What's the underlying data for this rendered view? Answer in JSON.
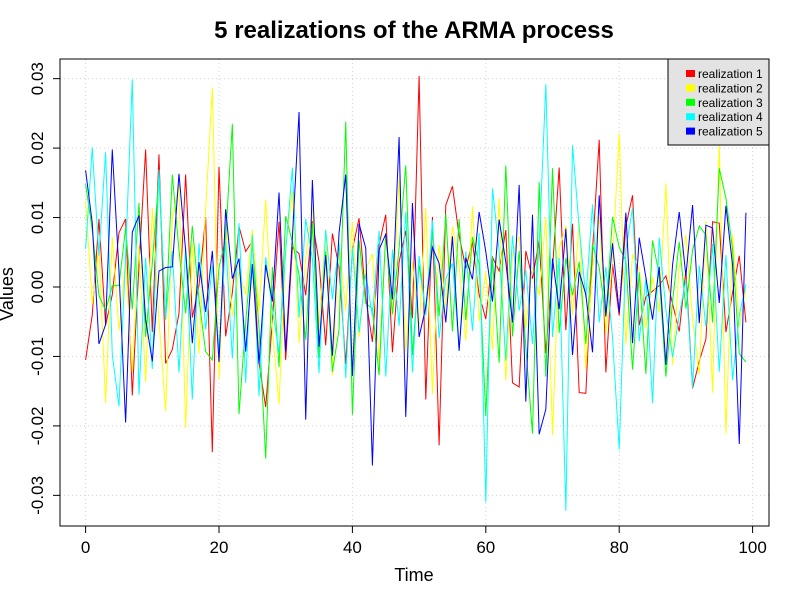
{
  "chart_data": {
    "type": "line",
    "title": "5 realizations of the ARMA process",
    "xlabel": "Time",
    "ylabel": "Values",
    "xlim": [
      0,
      100
    ],
    "ylim": [
      -0.035,
      0.033
    ],
    "x_ticks": [
      0,
      20,
      40,
      60,
      80,
      100
    ],
    "x_tick_labels": [
      "0",
      "20",
      "40",
      "60",
      "80",
      "100"
    ],
    "y_ticks": [
      -0.03,
      -0.02,
      -0.01,
      0.0,
      0.01,
      0.02,
      0.03
    ],
    "y_tick_labels": [
      "-0.03",
      "-0.02",
      "-0.01",
      "0.00",
      "0.01",
      "0.02",
      "0.03"
    ],
    "grid": true,
    "legend_position": "top-right",
    "legend_background": "#e3e3e3",
    "series": [
      {
        "name": "realization 1",
        "color": "#ff0000",
        "x_start": 0,
        "values": [
          -0.0105,
          -0.004,
          0.0098,
          -0.0055,
          -0.0011,
          0.0078,
          0.0098,
          -0.0156,
          0.0031,
          0.0198,
          -0.0065,
          0.0191,
          -0.011,
          -0.009,
          -0.0038,
          0.0162,
          -0.0044,
          0.0002,
          0.0101,
          -0.0238,
          0.0173,
          -0.0071,
          -0.0008,
          0.0087,
          0.0051,
          0.0066,
          -0.0109,
          -0.0173,
          -0.0049,
          0.0094,
          -0.0105,
          0.0057,
          0.0048,
          -0.0012,
          0.0095,
          0.0036,
          -0.0084,
          0.0077,
          0.0028,
          -0.0111,
          0.0054,
          0.0099,
          -0.0016,
          -0.0079,
          0.0061,
          0.0104,
          -0.0094,
          0.0036,
          0.0081,
          -0.0045,
          0.0304,
          -0.0162,
          0.0101,
          -0.0228,
          0.0118,
          0.0145,
          0.0074,
          0.0027,
          0.0065,
          -0.0011,
          -0.0046,
          0.0043,
          0.0023,
          0.0082,
          -0.0138,
          -0.0144,
          0.0052,
          0.0012,
          0.0067,
          -0.0095,
          0.0026,
          0.0172,
          -0.0062,
          0.0091,
          -0.0152,
          -0.0153,
          0.0053,
          0.0212,
          -0.0123,
          0.0033,
          -0.0041,
          0.0088,
          0.0132,
          -0.0055,
          -0.0014,
          -0.0006,
          0.0002,
          0.0016,
          -0.0024,
          -0.0064,
          0.0024,
          -0.0146,
          -0.0107,
          -0.0075,
          0.0094,
          0.0092,
          -0.0065,
          -0.0008,
          0.0045,
          -0.0051
        ]
      },
      {
        "name": "realization 2",
        "color": "#ffff00",
        "x_start": 0,
        "values": [
          0.0124,
          -0.0025,
          0.0057,
          -0.0167,
          0.0072,
          -0.0063,
          0.0038,
          -0.0122,
          0.0059,
          -0.0137,
          0.0114,
          -0.0048,
          -0.0179,
          0.0097,
          0.0148,
          -0.0203,
          0.0063,
          -0.0096,
          0.0111,
          0.0287,
          -0.0133,
          0.0091,
          -0.0042,
          0.0022,
          -0.0011,
          0.0082,
          -0.0035,
          0.0126,
          -0.0062,
          -0.0169,
          0.0055,
          0.0138,
          -0.0081,
          0.0042,
          0.0114,
          -0.0058,
          0.0083,
          -0.0127,
          0.0061,
          -0.0033,
          0.0094,
          -0.0072,
          0.0025,
          0.0048,
          -0.0109,
          0.0078,
          -0.0041,
          0.0155,
          -0.0093,
          0.0037,
          -0.0064,
          0.0114,
          -0.0154,
          0.0061,
          -0.0028,
          0.0087,
          0.0032,
          -0.0077,
          0.0116,
          -0.0049,
          0.0022,
          -0.0091,
          0.0128,
          -0.0135,
          0.0046,
          0.0073,
          -0.0058,
          0.0029,
          -0.0012,
          0.0101,
          -0.0213,
          0.0055,
          0.0088,
          -0.0041,
          0.0096,
          -0.0118,
          0.0027,
          0.0101,
          -0.0067,
          0.0038,
          0.0221,
          -0.0083,
          0.0047,
          0.0026,
          -0.0059,
          0.0014,
          -0.0036,
          0.0149,
          -0.0112,
          0.0028,
          0.0075,
          -0.0045,
          -0.0126,
          0.0095,
          -0.0152,
          0.0206,
          -0.0211,
          0.0075,
          -0.0058,
          -0.0002
        ]
      },
      {
        "name": "realization 3",
        "color": "#00ff00",
        "x_start": 0,
        "values": [
          0.0148,
          0.0082,
          -0.0012,
          -0.0034,
          0.0002,
          0.0002,
          0.0085,
          -0.0032,
          0.0121,
          -0.0072,
          0.0034,
          0.0159,
          -0.0047,
          0.0162,
          0.0053,
          -0.0038,
          0.0088,
          -0.0018,
          -0.0093,
          -0.0105,
          0.0028,
          0.0071,
          0.0235,
          -0.0183,
          -0.0051,
          0.0063,
          -0.0058,
          -0.0247,
          0.0029,
          -0.0115,
          0.0102,
          0.0065,
          0.0018,
          -0.0076,
          0.0092,
          -0.0102,
          0.0051,
          -0.0122,
          -0.0061,
          0.0238,
          -0.0184,
          0.0067,
          -0.0024,
          -0.0031,
          -0.0127,
          0.0077,
          -0.0039,
          0.0056,
          0.0175,
          -0.0098,
          0.0032,
          -0.0035,
          0.0083,
          -0.0042,
          0.0105,
          -0.0064,
          0.0098,
          -0.0048,
          0.0072,
          0.0033,
          -0.0186,
          0.0043,
          -0.0109,
          0.0175,
          -0.0071,
          0.0052,
          -0.0087,
          -0.0211,
          0.0151,
          -0.0129,
          0.0171,
          -0.0066,
          0.0042,
          -0.0012,
          0.0036,
          -0.0082,
          0.0061,
          0.0028,
          -0.0043,
          0.0101,
          0.0057,
          0.0038,
          -0.0119,
          0.0021,
          -0.0125,
          0.0067,
          0.0017,
          -0.0129,
          -0.0021,
          0.0065,
          -0.0031,
          0.0053,
          0.0088,
          0.0075,
          -0.0051,
          0.0171,
          0.0128,
          0.0054,
          -0.0096,
          -0.0108
        ]
      },
      {
        "name": "realization 4",
        "color": "#00ffff",
        "x_start": 0,
        "values": [
          0.0055,
          0.0201,
          0.0045,
          0.0194,
          -0.0097,
          -0.0172,
          0.0046,
          0.0299,
          -0.0155,
          0.0042,
          -0.0118,
          0.0169,
          -0.0044,
          0.0052,
          -0.0123,
          0.0058,
          -0.0162,
          0.0063,
          -0.0061,
          0.0031,
          -0.0092,
          0.0066,
          -0.0103,
          0.0092,
          -0.0138,
          0.0075,
          -0.0157,
          0.0043,
          -0.0032,
          -0.0094,
          0.0052,
          0.0172,
          -0.0044,
          0.0098,
          0.0041,
          -0.0124,
          0.0082,
          -0.0018,
          0.0063,
          -0.0131,
          0.0058,
          -0.0065,
          0.0019,
          -0.0042,
          0.0081,
          -0.0129,
          0.0054,
          -0.0056,
          0.0108,
          -0.0123,
          0.0045,
          -0.0041,
          0.0096,
          -0.0074,
          0.0012,
          0.0034,
          -0.0089,
          0.0051,
          -0.0063,
          0.0078,
          -0.031,
          0.0142,
          0.0052,
          -0.0106,
          0.0074,
          -0.0034,
          0.0024,
          -0.0082,
          0.0061,
          0.0292,
          -0.0072,
          0.0042,
          -0.0322,
          0.0204,
          0.0086,
          -0.0016,
          0.0119,
          -0.0051,
          0.0029,
          -0.0073,
          -0.0234,
          0.0054,
          0.0114,
          -0.0078,
          0.0012,
          -0.0167,
          0.0071,
          -0.0033,
          -0.0101,
          -0.0041,
          0.0011,
          -0.0145,
          0.0031,
          -0.0057,
          0.0062,
          -0.0122,
          0.0046,
          -0.0134,
          -0.0041,
          0.0004
        ]
      },
      {
        "name": "realization 5",
        "color": "#0000ff",
        "x_start": 0,
        "values": [
          0.0168,
          0.0092,
          -0.0082,
          -0.0054,
          0.0198,
          0.0024,
          -0.0195,
          0.0079,
          0.0103,
          -0.0047,
          -0.0107,
          0.0023,
          0.0028,
          0.0029,
          0.0163,
          0.0052,
          -0.0081,
          0.0036,
          -0.0036,
          0.0052,
          -0.0108,
          0.0112,
          0.0012,
          0.0041,
          -0.0093,
          0.0033,
          -0.0111,
          0.0032,
          -0.0021,
          0.0136,
          -0.0093,
          0.0071,
          0.0252,
          -0.0191,
          0.0154,
          -0.0086,
          0.0046,
          -0.0099,
          0.0078,
          0.0162,
          -0.0128,
          0.0091,
          0.0056,
          -0.0257,
          0.0054,
          0.0076,
          -0.0018,
          0.0216,
          -0.0187,
          0.0121,
          -0.0072,
          -0.0029,
          0.0057,
          0.0034,
          -0.0051,
          0.0073,
          -0.0092,
          0.0042,
          0.0011,
          0.0108,
          0.0051,
          -0.0021,
          0.0097,
          0.0036,
          -0.0051,
          0.0147,
          -0.0165,
          0.0104,
          -0.0212,
          -0.0176,
          0.0041,
          -0.0032,
          0.0084,
          -0.0098,
          0.0022,
          -0.0011,
          -0.0094,
          0.0132,
          -0.0042,
          0.0063,
          -0.0037,
          0.0107,
          -0.0081,
          0.0071,
          0.0014,
          -0.0047,
          0.0029,
          -0.0112,
          0.0032,
          0.0108,
          0.0016,
          0.0118,
          -0.0052,
          0.0089,
          0.0085,
          -0.0023,
          0.0117,
          0.0031,
          -0.0226,
          0.0107
        ]
      }
    ]
  }
}
